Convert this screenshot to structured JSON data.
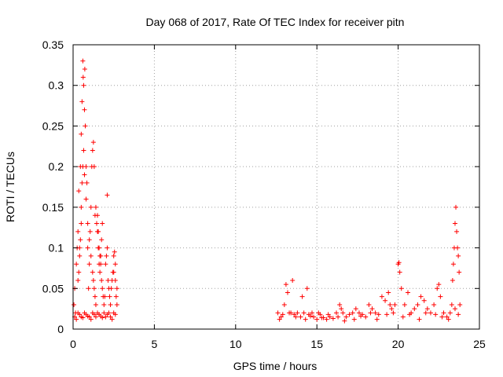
{
  "chart_data": {
    "type": "scatter",
    "title": "Day 068 of 2017, Rate Of TEC Index for receiver pitn",
    "xlabel": "GPS time / hours",
    "ylabel": "ROTI / TECUs",
    "xlim": [
      0,
      25
    ],
    "ylim": [
      0,
      0.35
    ],
    "xticks": [
      "0",
      "5",
      "10",
      "15",
      "20",
      "25"
    ],
    "yticks": [
      "0",
      "0.05",
      "0.1",
      "0.15",
      "0.2",
      "0.25",
      "0.3",
      "0.35"
    ],
    "grid": true,
    "marker": "plus",
    "color": "#ff0000",
    "series": [
      {
        "x": [
          0.05,
          0.1,
          0.15,
          0.2,
          0.25,
          0.3,
          0.35,
          0.4,
          0.45,
          0.5,
          0.55,
          0.6,
          0.62,
          0.65,
          0.7,
          0.72,
          0.75,
          0.8,
          0.85,
          0.9,
          0.95,
          1.0,
          1.05,
          1.1,
          1.15,
          1.2,
          1.25,
          1.3,
          1.35,
          1.4,
          1.45,
          1.5,
          1.55,
          1.6,
          1.65,
          1.7,
          1.75,
          1.8,
          1.85,
          1.9,
          1.95,
          2.0,
          2.05,
          2.1,
          2.15,
          2.2,
          2.25,
          2.3,
          2.35,
          2.4,
          2.45,
          2.5,
          2.55,
          2.6,
          2.65,
          2.7,
          0.1,
          0.2,
          0.3,
          0.4,
          0.5,
          0.6,
          0.7,
          0.8,
          0.9,
          1.0,
          1.1,
          1.2,
          1.3,
          1.4,
          1.5,
          1.6,
          1.7,
          1.8,
          1.9,
          2.0,
          2.1,
          2.2,
          2.3,
          2.4,
          2.5,
          2.6,
          0.5,
          0.55,
          0.6,
          0.65,
          0.7,
          0.8,
          0.9,
          1.0,
          1.1,
          1.2,
          1.25,
          1.3,
          1.35,
          1.4,
          0.3,
          0.35,
          0.4,
          0.45,
          0.5,
          1.5,
          1.55,
          1.6,
          1.65,
          1.7,
          1.75,
          1.8,
          2.1,
          2.5,
          2.6,
          2.7
        ],
        "y": [
          0.03,
          0.05,
          0.02,
          0.08,
          0.1,
          0.12,
          0.17,
          0.1,
          0.2,
          0.24,
          0.28,
          0.33,
          0.31,
          0.3,
          0.27,
          0.32,
          0.25,
          0.2,
          0.18,
          0.1,
          0.05,
          0.08,
          0.12,
          0.15,
          0.2,
          0.22,
          0.23,
          0.2,
          0.14,
          0.15,
          0.13,
          0.12,
          0.1,
          0.08,
          0.07,
          0.09,
          0.06,
          0.05,
          0.04,
          0.03,
          0.04,
          0.08,
          0.09,
          0.1,
          0.06,
          0.05,
          0.04,
          0.03,
          0.05,
          0.06,
          0.07,
          0.09,
          0.095,
          0.06,
          0.04,
          0.03,
          0.015,
          0.012,
          0.02,
          0.018,
          0.015,
          0.014,
          0.02,
          0.018,
          0.016,
          0.015,
          0.012,
          0.02,
          0.018,
          0.015,
          0.02,
          0.018,
          0.016,
          0.014,
          0.02,
          0.015,
          0.018,
          0.02,
          0.015,
          0.012,
          0.02,
          0.018,
          0.15,
          0.18,
          0.2,
          0.22,
          0.19,
          0.16,
          0.13,
          0.11,
          0.09,
          0.07,
          0.06,
          0.05,
          0.04,
          0.03,
          0.06,
          0.07,
          0.09,
          0.11,
          0.13,
          0.14,
          0.12,
          0.1,
          0.09,
          0.08,
          0.11,
          0.13,
          0.165,
          0.07,
          0.08,
          0.05
        ]
      },
      {
        "x": [
          12.6,
          12.8,
          13.0,
          13.1,
          13.2,
          13.4,
          13.5,
          13.6,
          13.8,
          14.0,
          14.1,
          14.2,
          14.4,
          14.5,
          14.6,
          14.8,
          15.0,
          15.1,
          15.2,
          15.4,
          15.6,
          15.8,
          16.0,
          16.2,
          16.4,
          16.5,
          16.6,
          16.8,
          17.0,
          17.2,
          17.4,
          17.6,
          17.8,
          18.0,
          18.2,
          18.4,
          18.6,
          18.8,
          19.0,
          19.2,
          19.4,
          19.5,
          19.6,
          19.8,
          20.0,
          20.05,
          20.1,
          20.2,
          20.4,
          20.6,
          20.8,
          21.0,
          21.2,
          21.4,
          21.6,
          21.8,
          22.0,
          22.2,
          22.4,
          22.5,
          22.6,
          22.8,
          23.0,
          23.2,
          23.3,
          23.35,
          23.4,
          23.45,
          23.5,
          23.55,
          23.6,
          23.65,
          23.7,
          23.75,
          23.8,
          12.7,
          12.9,
          13.3,
          13.7,
          14.3,
          14.7,
          15.3,
          15.7,
          16.3,
          16.7,
          17.3,
          17.7,
          18.3,
          18.7,
          19.3,
          19.7,
          20.3,
          20.7,
          21.3,
          21.7,
          22.3,
          22.7,
          23.1,
          23.5,
          23.7
        ],
        "y": [
          0.02,
          0.015,
          0.03,
          0.055,
          0.045,
          0.02,
          0.06,
          0.018,
          0.02,
          0.015,
          0.04,
          0.02,
          0.05,
          0.018,
          0.016,
          0.015,
          0.012,
          0.02,
          0.018,
          0.014,
          0.012,
          0.015,
          0.013,
          0.02,
          0.03,
          0.025,
          0.02,
          0.015,
          0.018,
          0.02,
          0.025,
          0.02,
          0.018,
          0.015,
          0.03,
          0.025,
          0.02,
          0.018,
          0.04,
          0.035,
          0.045,
          0.03,
          0.025,
          0.03,
          0.08,
          0.082,
          0.07,
          0.05,
          0.03,
          0.045,
          0.02,
          0.025,
          0.03,
          0.04,
          0.035,
          0.025,
          0.02,
          0.03,
          0.05,
          0.055,
          0.04,
          0.02,
          0.015,
          0.02,
          0.03,
          0.06,
          0.08,
          0.1,
          0.13,
          0.15,
          0.12,
          0.1,
          0.09,
          0.07,
          0.03,
          0.012,
          0.018,
          0.02,
          0.015,
          0.012,
          0.02,
          0.014,
          0.018,
          0.015,
          0.01,
          0.012,
          0.016,
          0.02,
          0.012,
          0.018,
          0.02,
          0.015,
          0.018,
          0.012,
          0.02,
          0.018,
          0.015,
          0.012,
          0.025,
          0.018
        ]
      }
    ]
  }
}
